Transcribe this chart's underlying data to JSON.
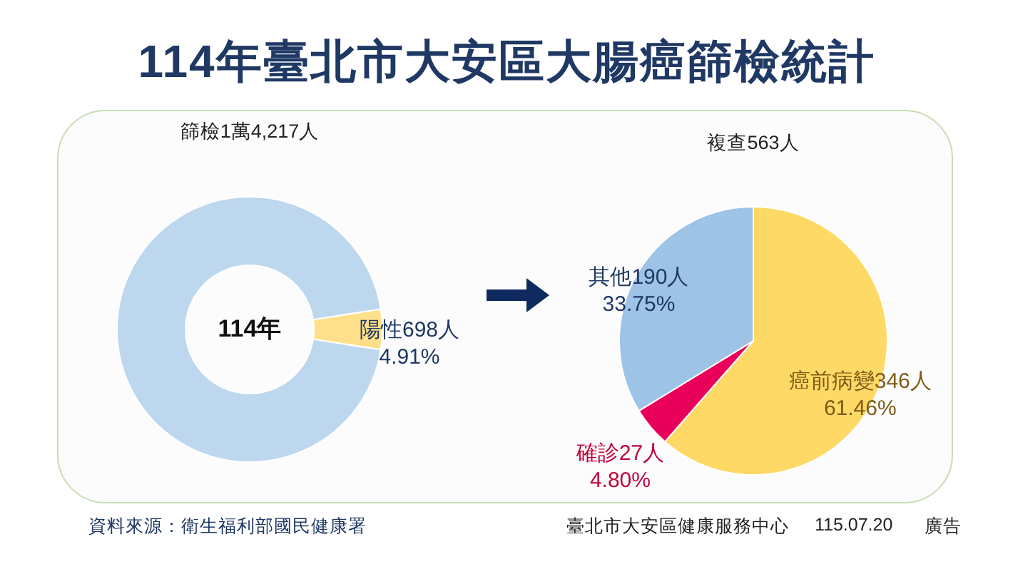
{
  "chart_data": [
    {
      "type": "other",
      "title": "114年臺北市大安區大腸癌篩檢統計",
      "annotations": [
        "資料來源：衛生福利部國民健康署",
        "臺北市大安區健康服務中心",
        "115.07.20",
        "廣告"
      ]
    },
    {
      "type": "donut",
      "title": "篩檢1萬4,217人",
      "annotations": [
        "114年"
      ],
      "categories": [
        "陽性698人",
        null
      ],
      "values": [
        4.91,
        95.09
      ],
      "value_labels": [
        "4.91%",
        null
      ],
      "colors": [
        "#ffe08a",
        "#bdd7ee"
      ]
    },
    {
      "type": "pie",
      "title": "複查563人",
      "categories": [
        "癌前病變346人",
        "確診27人",
        "其他190人"
      ],
      "values": [
        61.46,
        4.8,
        33.75
      ],
      "value_labels": [
        "61.46%",
        "4.80%",
        "33.75%"
      ],
      "colors": [
        "#ffd966",
        "#e8005a",
        "#9dc3e6"
      ]
    }
  ]
}
